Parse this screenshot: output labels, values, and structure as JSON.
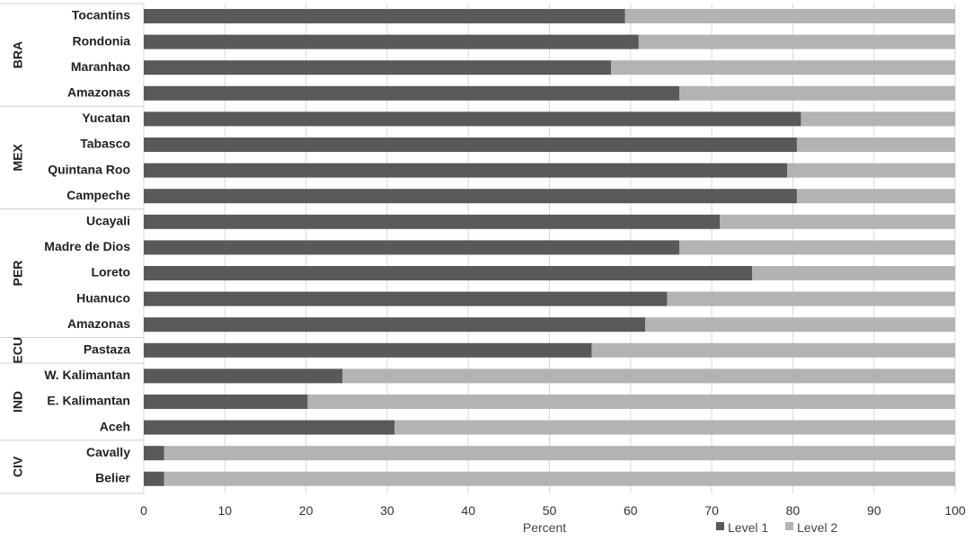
{
  "chart_data": {
    "type": "bar",
    "orientation": "horizontal",
    "stacked": true,
    "xlabel": "Percent",
    "xlim": [
      0,
      100
    ],
    "xticks": [
      0,
      10,
      20,
      30,
      40,
      50,
      60,
      70,
      80,
      90,
      100
    ],
    "grid": true,
    "legend_position": "bottom-right",
    "categories": [
      "Tocantins",
      "Rondonia",
      "Maranhao",
      "Amazonas",
      "Yucatan",
      "Tabasco",
      "Quintana Roo",
      "Campeche",
      "Ucayali",
      "Madre de Dios",
      "Loreto",
      "Huanuco",
      "Amazonas",
      "Pastaza",
      "W. Kalimantan",
      "E. Kalimantan",
      "Aceh",
      "Cavally",
      "Belier"
    ],
    "groups": [
      {
        "label": "BRA",
        "count": 4
      },
      {
        "label": "MEX",
        "count": 4
      },
      {
        "label": "PER",
        "count": 5
      },
      {
        "label": "ECU",
        "count": 1
      },
      {
        "label": "IND",
        "count": 3
      },
      {
        "label": "CIV",
        "count": 2
      }
    ],
    "series": [
      {
        "name": "Level 1",
        "color": "#595959",
        "values": [
          59.3,
          61,
          57.6,
          66,
          81,
          80.5,
          79.3,
          80.5,
          71,
          66,
          75,
          64.5,
          61.8,
          55.2,
          24.5,
          20.2,
          30.9,
          2.5,
          2.5
        ]
      },
      {
        "name": "Level 2",
        "color": "#b3b3b3",
        "values": [
          40.7,
          39,
          42.4,
          34,
          19,
          19.5,
          20.7,
          19.5,
          29,
          34,
          25,
          35.5,
          38.2,
          44.8,
          75.5,
          79.8,
          69.1,
          97.5,
          97.5
        ]
      }
    ]
  }
}
